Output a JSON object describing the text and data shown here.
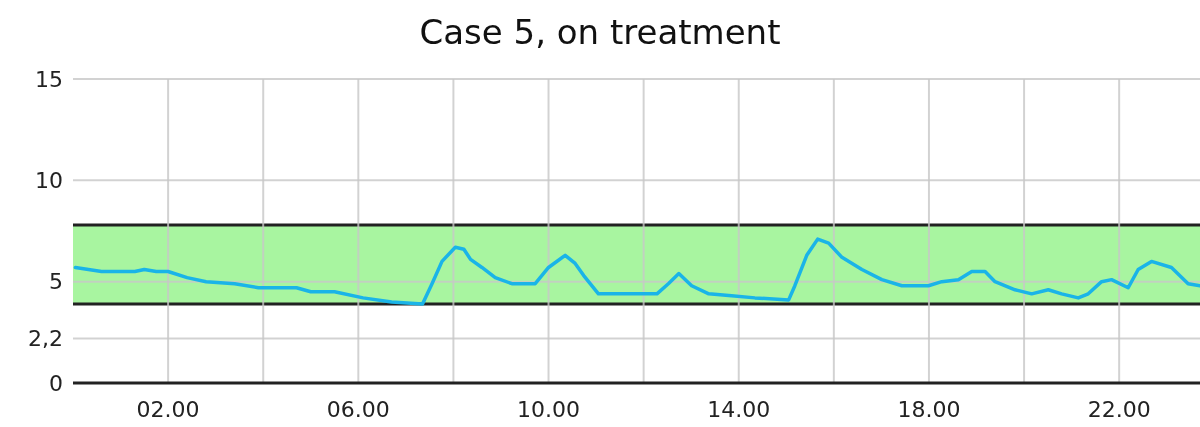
{
  "chart_data": {
    "type": "line",
    "title": "Case 5, on treatment",
    "xlim": [
      0,
      23.7
    ],
    "ylim": [
      0,
      15
    ],
    "xticks": [
      {
        "value": 2,
        "label": "02.00"
      },
      {
        "value": 4,
        "label": null
      },
      {
        "value": 6,
        "label": "06.00"
      },
      {
        "value": 8,
        "label": null
      },
      {
        "value": 10,
        "label": "10.00"
      },
      {
        "value": 12,
        "label": null
      },
      {
        "value": 14,
        "label": "14.00"
      },
      {
        "value": 16,
        "label": null
      },
      {
        "value": 18,
        "label": "18.00"
      },
      {
        "value": 20,
        "label": null
      },
      {
        "value": 22,
        "label": "22.00"
      }
    ],
    "yticks": [
      0,
      {
        "value": 2.2,
        "label": "2,2"
      },
      5,
      10,
      15
    ],
    "grid": true,
    "marker": "none",
    "line_style": "solid",
    "ref_lines": [
      {
        "axis": "y",
        "value": 3.9,
        "color": "#222222"
      },
      {
        "axis": "y",
        "value": 7.8,
        "color": "#222222"
      }
    ],
    "bands": [
      {
        "axis": "y",
        "from": 3.9,
        "to": 7.8,
        "color": "#a8f5a0"
      }
    ],
    "series": [
      {
        "color": "#1ab4e8",
        "x": [
          0.05,
          0.6,
          1.3,
          1.5,
          1.75,
          2.0,
          2.4,
          2.8,
          3.4,
          3.9,
          4.7,
          5.0,
          5.5,
          6.1,
          6.7,
          7.35,
          7.55,
          7.76,
          8.04,
          8.22,
          8.36,
          8.6,
          8.88,
          9.23,
          9.72,
          10.0,
          10.35,
          10.56,
          10.74,
          11.05,
          11.82,
          12.28,
          12.52,
          12.74,
          13.01,
          13.37,
          13.85,
          14.34,
          15.05,
          15.18,
          15.43,
          15.66,
          15.89,
          16.17,
          16.59,
          17.01,
          17.43,
          17.99,
          18.27,
          18.62,
          18.9,
          19.18,
          19.39,
          19.81,
          20.16,
          20.51,
          20.79,
          21.14,
          21.35,
          21.63,
          21.84,
          22.19,
          22.4,
          22.68,
          23.1,
          23.45,
          23.7
        ],
        "values": [
          5.7,
          5.5,
          5.5,
          5.6,
          5.5,
          5.5,
          5.2,
          5.0,
          4.9,
          4.7,
          4.7,
          4.5,
          4.5,
          4.2,
          4.0,
          3.9,
          4.9,
          6.0,
          6.7,
          6.6,
          6.1,
          5.7,
          5.2,
          4.9,
          4.9,
          5.7,
          6.3,
          5.9,
          5.3,
          4.4,
          4.4,
          4.4,
          4.9,
          5.4,
          4.8,
          4.4,
          4.3,
          4.2,
          4.1,
          4.8,
          6.3,
          7.1,
          6.9,
          6.2,
          5.6,
          5.1,
          4.8,
          4.8,
          5.0,
          5.1,
          5.5,
          5.5,
          5.0,
          4.6,
          4.4,
          4.6,
          4.4,
          4.2,
          4.4,
          5.0,
          5.1,
          4.7,
          5.6,
          6.0,
          5.7,
          4.9,
          4.8
        ]
      }
    ]
  }
}
